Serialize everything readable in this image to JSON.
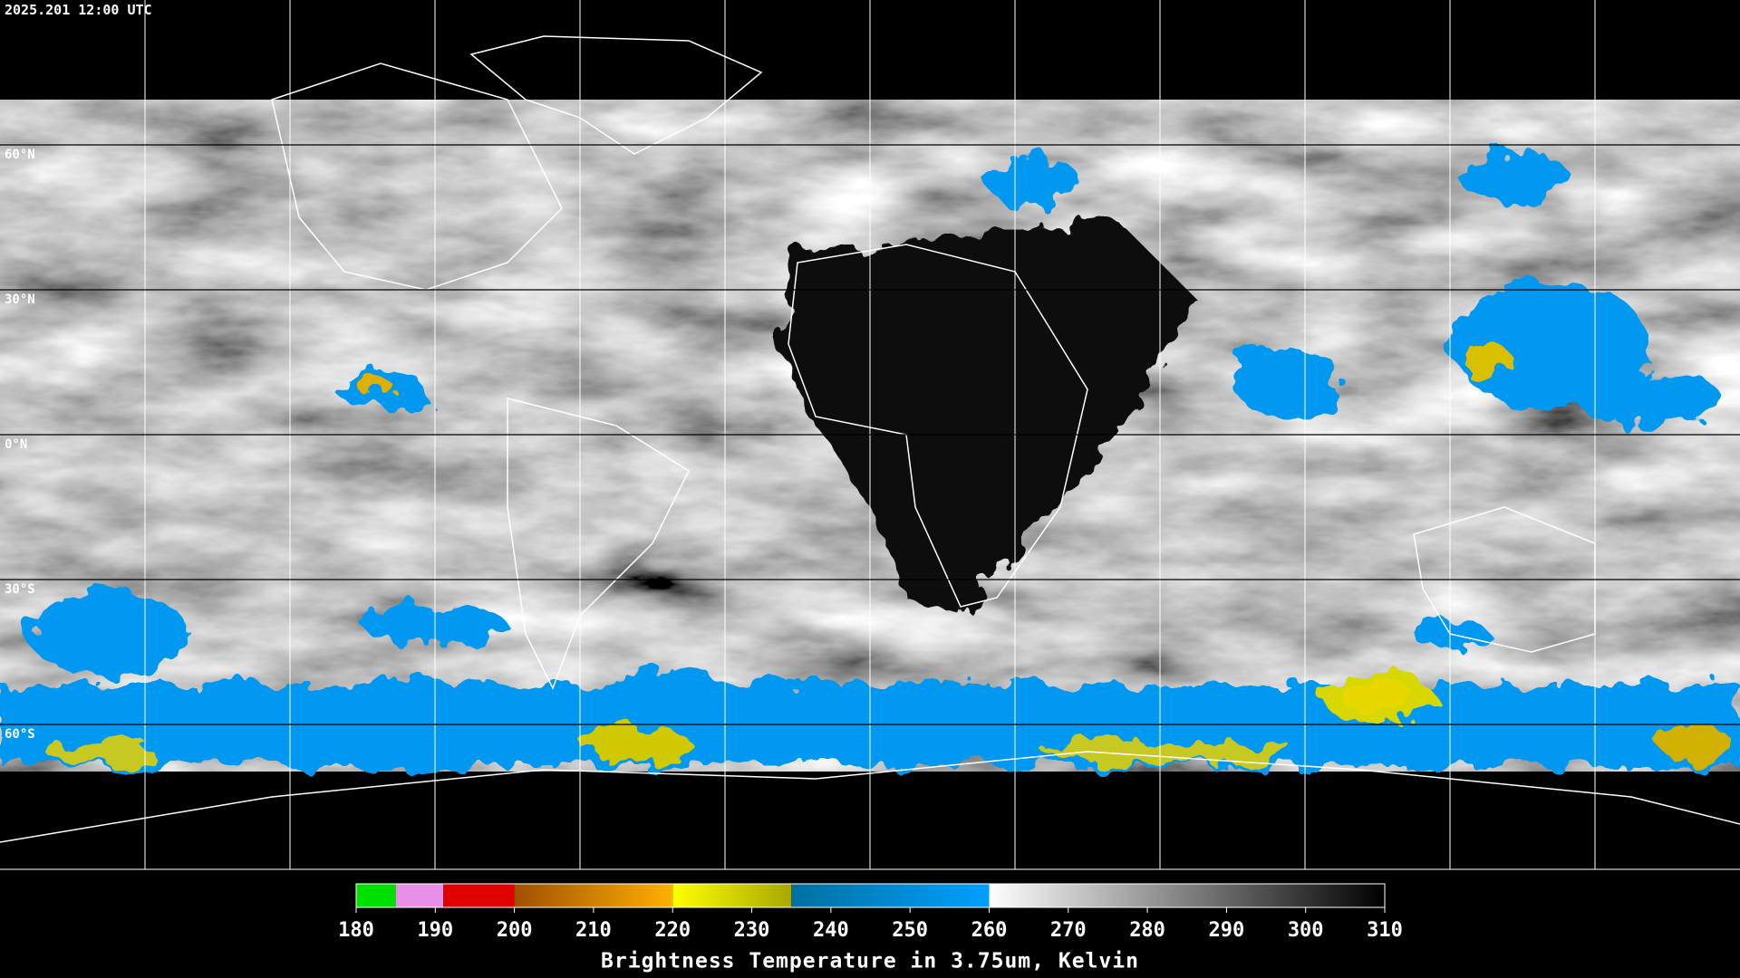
{
  "header": {
    "timestamp": "2025.201 12:00 UTC"
  },
  "map": {
    "latitude_labels": [
      "60°N",
      "30°N",
      "0°N",
      "30°S",
      "60°S"
    ]
  },
  "colorbar": {
    "range": [
      180,
      310
    ],
    "ticks": [
      180,
      190,
      200,
      210,
      220,
      230,
      240,
      250,
      260,
      270,
      280,
      290,
      300,
      310
    ],
    "title": "Brightness Temperature in 3.75um, Kelvin",
    "segments": [
      {
        "from": 180,
        "to": 185,
        "colors": [
          "#00e000",
          "#00e000"
        ]
      },
      {
        "from": 185,
        "to": 191,
        "colors": [
          "#e890e8",
          "#e890e8"
        ]
      },
      {
        "from": 191,
        "to": 200,
        "colors": [
          "#e00000",
          "#e00000"
        ]
      },
      {
        "from": 200,
        "to": 220,
        "colors": [
          "#a05000",
          "#ffb000"
        ]
      },
      {
        "from": 220,
        "to": 235,
        "colors": [
          "#ffff00",
          "#a8a800"
        ]
      },
      {
        "from": 235,
        "to": 260,
        "colors": [
          "#0070a0",
          "#00a0ff"
        ]
      },
      {
        "from": 260,
        "to": 310,
        "colors": [
          "#ffffff",
          "#000000"
        ]
      }
    ]
  }
}
